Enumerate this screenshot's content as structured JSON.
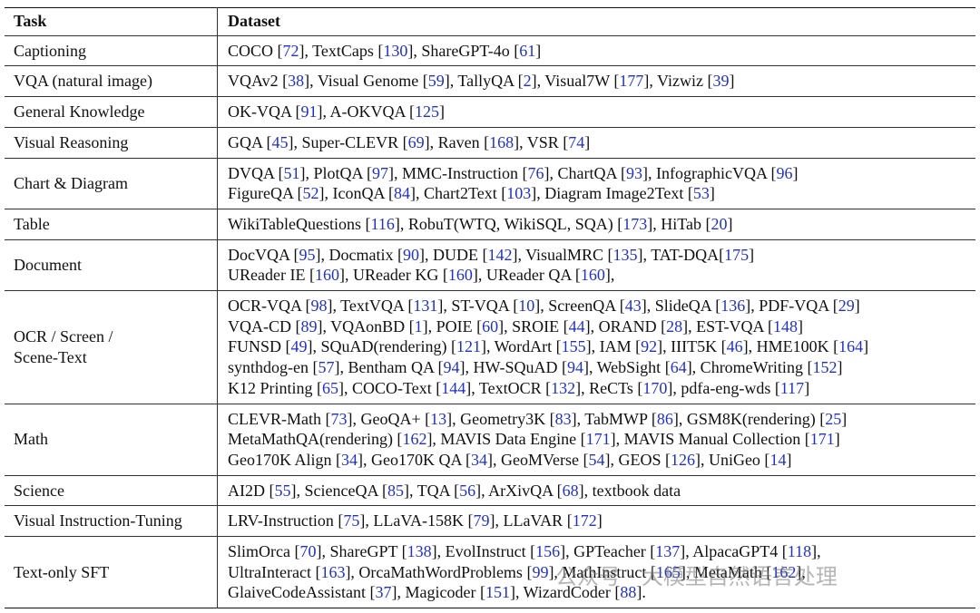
{
  "header": {
    "task": "Task",
    "dataset": "Dataset"
  },
  "rows": [
    {
      "task": [
        "Captioning"
      ],
      "lines": [
        [
          "COCO [",
          "72",
          "], TextCaps [",
          "130",
          "], ShareGPT-4o [",
          "61",
          "]"
        ]
      ]
    },
    {
      "task": [
        "VQA (natural image)"
      ],
      "lines": [
        [
          "VQAv2 [",
          "38",
          "], Visual Genome [",
          "59",
          "], TallyQA [",
          "2",
          "], Visual7W [",
          "177",
          "], Vizwiz [",
          "39",
          "]"
        ]
      ]
    },
    {
      "task": [
        "General Knowledge"
      ],
      "lines": [
        [
          "OK-VQA [",
          "91",
          "], A-OKVQA [",
          "125",
          "]"
        ]
      ]
    },
    {
      "task": [
        "Visual Reasoning"
      ],
      "lines": [
        [
          "GQA [",
          "45",
          "], Super-CLEVR [",
          "69",
          "], Raven [",
          "168",
          "], VSR [",
          "74",
          "]"
        ]
      ]
    },
    {
      "task": [
        "Chart & Diagram"
      ],
      "lines": [
        [
          "DVQA [",
          "51",
          "], PlotQA [",
          "97",
          "], MMC-Instruction [",
          "76",
          "], ChartQA [",
          "93",
          "], InfographicVQA [",
          "96",
          "]"
        ],
        [
          "FigureQA [",
          "52",
          "], IconQA [",
          "84",
          "], Chart2Text [",
          "103",
          "], Diagram Image2Text [",
          "53",
          "]"
        ]
      ]
    },
    {
      "task": [
        "Table"
      ],
      "lines": [
        [
          "WikiTableQuestions [",
          "116",
          "], RobuT(WTQ, WikiSQL, SQA) [",
          "173",
          "], HiTab [",
          "20",
          "]"
        ]
      ]
    },
    {
      "task": [
        "Document"
      ],
      "lines": [
        [
          "DocVQA [",
          "95",
          "], Docmatix [",
          "90",
          "], DUDE [",
          "142",
          "], VisualMRC [",
          "135",
          "], TAT-DQA[",
          "175",
          "]"
        ],
        [
          "UReader IE [",
          "160",
          "], UReader KG [",
          "160",
          "], UReader QA [",
          "160",
          "],"
        ]
      ]
    },
    {
      "task": [
        "OCR / Screen /",
        "Scene-Text"
      ],
      "lines": [
        [
          "OCR-VQA [",
          "98",
          "], TextVQA [",
          "131",
          "], ST-VQA [",
          "10",
          "], ScreenQA [",
          "43",
          "], SlideQA [",
          "136",
          "], PDF-VQA [",
          "29",
          "]"
        ],
        [
          "VQA-CD [",
          "89",
          "], VQAonBD [",
          "1",
          "], POIE [",
          "60",
          "], SROIE [",
          "44",
          "], ORAND [",
          "28",
          "], EST-VQA [",
          "148",
          "]"
        ],
        [
          "FUNSD [",
          "49",
          "], SQuAD(rendering) [",
          "121",
          "], WordArt [",
          "155",
          "], IAM [",
          "92",
          "], IIIT5K [",
          "46",
          "], HME100K [",
          "164",
          "]"
        ],
        [
          "synthdog-en [",
          "57",
          "], Bentham QA [",
          "94",
          "], HW-SQuAD [",
          "94",
          "], WebSight [",
          "64",
          "], ChromeWriting [",
          "152",
          "]"
        ],
        [
          "K12 Printing [",
          "65",
          "], COCO-Text [",
          "144",
          "], TextOCR [",
          "132",
          "], ReCTs [",
          "170",
          "], pdfa-eng-wds [",
          "117",
          "]"
        ]
      ]
    },
    {
      "task": [
        "Math"
      ],
      "lines": [
        [
          "CLEVR-Math [",
          "73",
          "], GeoQA+ [",
          "13",
          "], Geometry3K [",
          "83",
          "], TabMWP [",
          "86",
          "], GSM8K(rendering) [",
          "25",
          "]"
        ],
        [
          "MetaMathQA(rendering) [",
          "162",
          "], MAVIS Data Engine [",
          "171",
          "], MAVIS Manual Collection [",
          "171",
          "]"
        ],
        [
          "Geo170K Align [",
          "34",
          "], Geo170K QA [",
          "34",
          "], GeoMVerse [",
          "54",
          "], GEOS [",
          "126",
          "], UniGeo [",
          "14",
          "]"
        ]
      ]
    },
    {
      "task": [
        "Science"
      ],
      "lines": [
        [
          "AI2D [",
          "55",
          "], ScienceQA [",
          "85",
          "], TQA [",
          "56",
          "], ArXivQA [",
          "68",
          "], textbook data"
        ]
      ]
    },
    {
      "task": [
        "Visual Instruction-Tuning"
      ],
      "lines": [
        [
          "LRV-Instruction [",
          "75",
          "], LLaVA-158K [",
          "79",
          "], LLaVAR [",
          "172",
          "]"
        ]
      ]
    },
    {
      "task": [
        "Text-only SFT"
      ],
      "lines": [
        [
          "SlimOrca [",
          "70",
          "], ShareGPT [",
          "138",
          "], EvolInstruct [",
          "156",
          "], GPTeacher [",
          "137",
          "], AlpacaGPT4 [",
          "118",
          "],"
        ],
        [
          "UltraInteract [",
          "163",
          "], OrcaMathWordProblems [",
          "99",
          "], MathInstruct [",
          "165",
          "], MetaMath [",
          "162",
          "],"
        ],
        [
          "GlaiveCodeAssistant [",
          "37",
          "], Magicoder [",
          "151",
          "], WizardCoder [",
          "88",
          "]."
        ]
      ]
    }
  ],
  "watermark": "公众号 · 大模型自然语言处理"
}
